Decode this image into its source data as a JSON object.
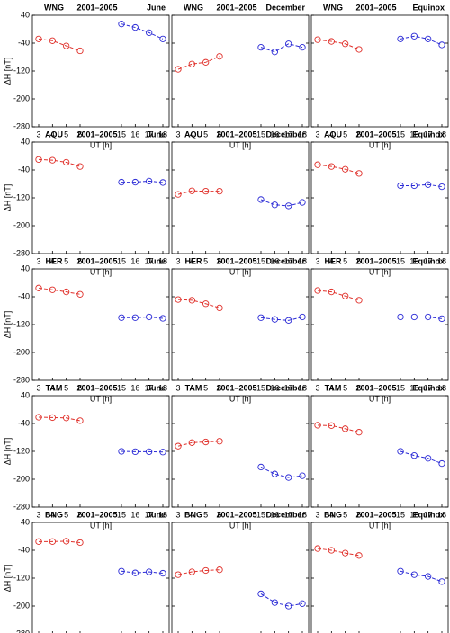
{
  "chart_data": [
    {
      "type": "line",
      "title": [
        "WNG",
        "2001–2005",
        "June"
      ],
      "y_label": "ΔH [nT]",
      "x_label": "UT [h]",
      "categories": [
        "3",
        "4",
        "5",
        "6",
        null,
        null,
        "15",
        "16",
        "17",
        "18"
      ],
      "ylim": [
        -280,
        40
      ],
      "yticks": [
        40,
        -40,
        -120,
        -200,
        -280
      ],
      "series": [
        {
          "color": "#e0302a",
          "values": [
            -28,
            -33,
            -48,
            -62,
            null,
            null,
            null,
            null,
            null,
            null
          ]
        },
        {
          "color": "#2b2bd6",
          "values": [
            null,
            null,
            null,
            null,
            null,
            null,
            15,
            5,
            -10,
            -28
          ]
        }
      ]
    },
    {
      "type": "line",
      "title": [
        "WNG",
        "2001–2005",
        "December"
      ],
      "x_label": "UT [h]",
      "categories": [
        "3",
        "4",
        "5",
        "6",
        null,
        null,
        "15",
        "16",
        "17",
        "18"
      ],
      "ylim": [
        -280,
        40
      ],
      "yticks": [
        40,
        -40,
        -120,
        -200,
        -280
      ],
      "series": [
        {
          "color": "#e0302a",
          "values": [
            -115,
            -100,
            -95,
            -78,
            null,
            null,
            null,
            null,
            null,
            null
          ]
        },
        {
          "color": "#2b2bd6",
          "values": [
            null,
            null,
            null,
            null,
            null,
            null,
            -52,
            -65,
            -42,
            -52
          ]
        }
      ]
    },
    {
      "type": "line",
      "title": [
        "WNG",
        "2001–2005",
        "Equinox"
      ],
      "x_label": "UT [h]",
      "categories": [
        "3",
        "4",
        "5",
        "6",
        null,
        null,
        "15",
        "16",
        "17",
        "18"
      ],
      "ylim": [
        -280,
        40
      ],
      "yticks": [
        40,
        -40,
        -120,
        -200,
        -280
      ],
      "series": [
        {
          "color": "#e0302a",
          "values": [
            -30,
            -35,
            -42,
            -58,
            null,
            null,
            null,
            null,
            null,
            null
          ]
        },
        {
          "color": "#2b2bd6",
          "values": [
            null,
            null,
            null,
            null,
            null,
            null,
            -28,
            -20,
            -28,
            -45
          ]
        }
      ]
    },
    {
      "type": "line",
      "title": [
        "AQU",
        "2001–2005",
        "June"
      ],
      "y_label": "ΔH [nT]",
      "x_label": "UT [h]",
      "categories": [
        "3",
        "4",
        "5",
        "6",
        null,
        null,
        "15",
        "16",
        "17",
        "18"
      ],
      "ylim": [
        -280,
        40
      ],
      "yticks": [
        40,
        -40,
        -120,
        -200,
        -280
      ],
      "series": [
        {
          "color": "#e0302a",
          "values": [
            -10,
            -12,
            -18,
            -30,
            null,
            null,
            null,
            null,
            null,
            null
          ]
        },
        {
          "color": "#2b2bd6",
          "values": [
            null,
            null,
            null,
            null,
            null,
            null,
            -75,
            -75,
            -72,
            -76
          ]
        }
      ]
    },
    {
      "type": "line",
      "title": [
        "AQU",
        "2001–2005",
        "December"
      ],
      "x_label": "UT [h]",
      "categories": [
        "3",
        "4",
        "5",
        "6",
        null,
        null,
        "15",
        "16",
        "17",
        "18"
      ],
      "ylim": [
        -280,
        40
      ],
      "yticks": [
        40,
        -40,
        -120,
        -200,
        -280
      ],
      "series": [
        {
          "color": "#e0302a",
          "values": [
            -110,
            -100,
            -101,
            -101,
            null,
            null,
            null,
            null,
            null,
            null
          ]
        },
        {
          "color": "#2b2bd6",
          "values": [
            null,
            null,
            null,
            null,
            null,
            null,
            -125,
            -140,
            -143,
            -133
          ]
        }
      ]
    },
    {
      "type": "line",
      "title": [
        "AQU",
        "2001–2005",
        "Equinox"
      ],
      "x_label": "UT [h]",
      "categories": [
        "3",
        "4",
        "5",
        "6",
        null,
        null,
        "15",
        "16",
        "17",
        "18"
      ],
      "ylim": [
        -280,
        40
      ],
      "yticks": [
        40,
        -40,
        -120,
        -200,
        -280
      ],
      "series": [
        {
          "color": "#e0302a",
          "values": [
            -25,
            -30,
            -38,
            -50,
            null,
            null,
            null,
            null,
            null,
            null
          ]
        },
        {
          "color": "#2b2bd6",
          "values": [
            null,
            null,
            null,
            null,
            null,
            null,
            -85,
            -85,
            -82,
            -88
          ]
        }
      ]
    },
    {
      "type": "line",
      "title": [
        "HER",
        "2001–2005",
        "June"
      ],
      "y_label": "ΔH [nT]",
      "x_label": "UT [h]",
      "categories": [
        "3",
        "4",
        "5",
        "6",
        null,
        null,
        "15",
        "16",
        "17",
        "18"
      ],
      "ylim": [
        -280,
        40
      ],
      "yticks": [
        40,
        -40,
        -120,
        -200,
        -280
      ],
      "series": [
        {
          "color": "#e0302a",
          "values": [
            -15,
            -20,
            -26,
            -33,
            null,
            null,
            null,
            null,
            null,
            null
          ]
        },
        {
          "color": "#2b2bd6",
          "values": [
            null,
            null,
            null,
            null,
            null,
            null,
            -100,
            -100,
            -98,
            -102
          ]
        }
      ]
    },
    {
      "type": "line",
      "title": [
        "HER",
        "2001–2005",
        "December"
      ],
      "x_label": "UT [h]",
      "categories": [
        "3",
        "4",
        "5",
        "6",
        null,
        null,
        "15",
        "16",
        "17",
        "18"
      ],
      "ylim": [
        -280,
        40
      ],
      "yticks": [
        40,
        -40,
        -120,
        -200,
        -280
      ],
      "series": [
        {
          "color": "#e0302a",
          "values": [
            -48,
            -50,
            -60,
            -72,
            null,
            null,
            null,
            null,
            null,
            null
          ]
        },
        {
          "color": "#2b2bd6",
          "values": [
            null,
            null,
            null,
            null,
            null,
            null,
            -100,
            -105,
            -108,
            -98
          ]
        }
      ]
    },
    {
      "type": "line",
      "title": [
        "HER",
        "2001–2005",
        "Equinox"
      ],
      "x_label": "UT [h]",
      "categories": [
        "3",
        "4",
        "5",
        "6",
        null,
        null,
        "15",
        "16",
        "17",
        "18"
      ],
      "ylim": [
        -280,
        40
      ],
      "yticks": [
        40,
        -40,
        -120,
        -200,
        -280
      ],
      "series": [
        {
          "color": "#e0302a",
          "values": [
            -22,
            -26,
            -38,
            -50,
            null,
            null,
            null,
            null,
            null,
            null
          ]
        },
        {
          "color": "#2b2bd6",
          "values": [
            null,
            null,
            null,
            null,
            null,
            null,
            -98,
            -98,
            -98,
            -103
          ]
        }
      ]
    },
    {
      "type": "line",
      "title": [
        "TAM",
        "2001–2005",
        "June"
      ],
      "y_label": "ΔH [nT]",
      "x_label": "UT [h]",
      "categories": [
        "3",
        "4",
        "5",
        "6",
        null,
        null,
        "15",
        "16",
        "17",
        "18"
      ],
      "ylim": [
        -280,
        40
      ],
      "yticks": [
        40,
        -40,
        -120,
        -200,
        -280
      ],
      "series": [
        {
          "color": "#e0302a",
          "values": [
            -22,
            -23,
            -24,
            -32,
            null,
            null,
            null,
            null,
            null,
            null
          ]
        },
        {
          "color": "#2b2bd6",
          "values": [
            null,
            null,
            null,
            null,
            null,
            null,
            -120,
            -121,
            -121,
            -122
          ]
        }
      ]
    },
    {
      "type": "line",
      "title": [
        "TAM",
        "2001–2005",
        "December"
      ],
      "x_label": "UT [h]",
      "categories": [
        "3",
        "4",
        "5",
        "6",
        null,
        null,
        "15",
        "16",
        "17",
        "18"
      ],
      "ylim": [
        -280,
        40
      ],
      "yticks": [
        40,
        -40,
        -120,
        -200,
        -280
      ],
      "series": [
        {
          "color": "#e0302a",
          "values": [
            -105,
            -95,
            -93,
            -91,
            null,
            null,
            null,
            null,
            null,
            null
          ]
        },
        {
          "color": "#2b2bd6",
          "values": [
            null,
            null,
            null,
            null,
            null,
            null,
            -165,
            -185,
            -195,
            -190
          ]
        }
      ]
    },
    {
      "type": "line",
      "title": [
        "TAM",
        "2001–2005",
        "Equinox"
      ],
      "x_label": "UT [h]",
      "categories": [
        "3",
        "4",
        "5",
        "6",
        null,
        null,
        "15",
        "16",
        "17",
        "18"
      ],
      "ylim": [
        -280,
        40
      ],
      "yticks": [
        40,
        -40,
        -120,
        -200,
        -280
      ],
      "series": [
        {
          "color": "#e0302a",
          "values": [
            -45,
            -46,
            -55,
            -65,
            null,
            null,
            null,
            null,
            null,
            null
          ]
        },
        {
          "color": "#2b2bd6",
          "values": [
            null,
            null,
            null,
            null,
            null,
            null,
            -120,
            -132,
            -140,
            -155
          ]
        }
      ]
    },
    {
      "type": "line",
      "title": [
        "BNG",
        "2001–2005",
        "June"
      ],
      "y_label": "ΔH [nT]",
      "x_label": "UT [h]",
      "categories": [
        "3",
        "4",
        "5",
        "6",
        null,
        null,
        "15",
        "16",
        "17",
        "18"
      ],
      "ylim": [
        -280,
        40
      ],
      "yticks": [
        40,
        -40,
        -120,
        -200,
        -280
      ],
      "series": [
        {
          "color": "#e0302a",
          "values": [
            -15,
            -15,
            -14,
            -18,
            null,
            null,
            null,
            null,
            null,
            null
          ]
        },
        {
          "color": "#2b2bd6",
          "values": [
            null,
            null,
            null,
            null,
            null,
            null,
            -100,
            -105,
            -102,
            -106
          ]
        }
      ]
    },
    {
      "type": "line",
      "title": [
        "BNG",
        "2001–2005",
        "December"
      ],
      "x_label": "UT [h]",
      "categories": [
        "3",
        "4",
        "5",
        "6",
        null,
        null,
        "15",
        "16",
        "17",
        "18"
      ],
      "ylim": [
        -280,
        40
      ],
      "yticks": [
        40,
        -40,
        -120,
        -200,
        -280
      ],
      "series": [
        {
          "color": "#e0302a",
          "values": [
            -110,
            -102,
            -98,
            -96,
            null,
            null,
            null,
            null,
            null,
            null
          ]
        },
        {
          "color": "#2b2bd6",
          "values": [
            null,
            null,
            null,
            null,
            null,
            null,
            -165,
            -190,
            -200,
            -193
          ]
        }
      ]
    },
    {
      "type": "line",
      "title": [
        "BNG",
        "2001–2005",
        "Equinox"
      ],
      "x_label": "UT [h]",
      "categories": [
        "3",
        "4",
        "5",
        "6",
        null,
        null,
        "15",
        "16",
        "17",
        "18"
      ],
      "ylim": [
        -280,
        40
      ],
      "yticks": [
        40,
        -40,
        -120,
        -200,
        -280
      ],
      "series": [
        {
          "color": "#e0302a",
          "values": [
            -35,
            -40,
            -48,
            -55,
            null,
            null,
            null,
            null,
            null,
            null
          ]
        },
        {
          "color": "#2b2bd6",
          "values": [
            null,
            null,
            null,
            null,
            null,
            null,
            -100,
            -110,
            -115,
            -130
          ]
        }
      ]
    }
  ]
}
